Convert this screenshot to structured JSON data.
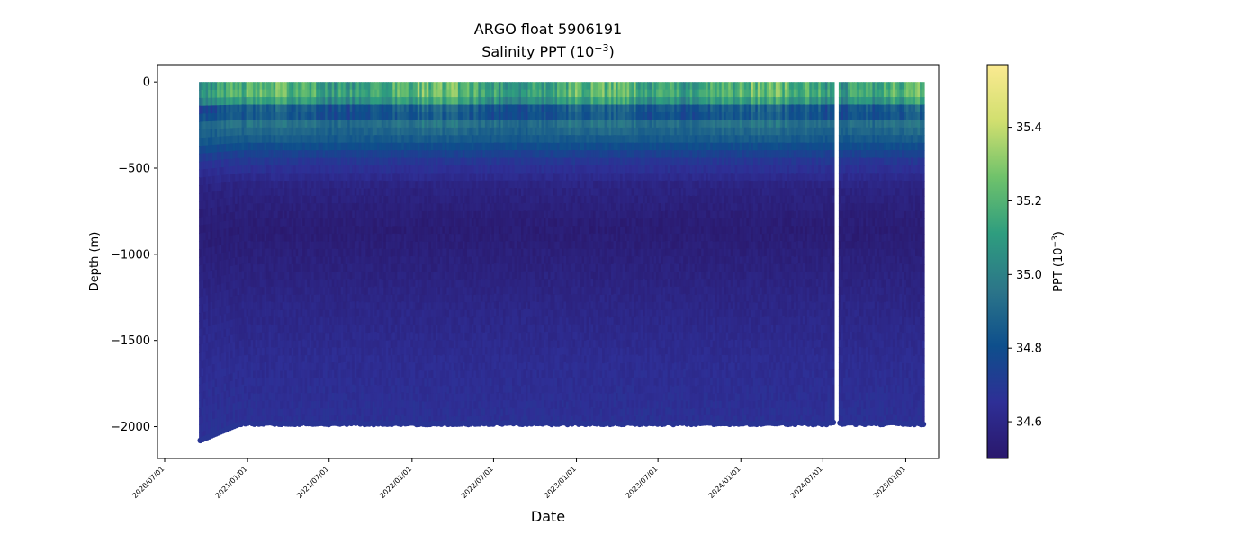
{
  "chart_data": {
    "type": "scatter",
    "title": "ARGO float 5906191",
    "subtitle_prefix": "Salinity PPT (10",
    "subtitle_sup": "−3",
    "subtitle_suffix": ")",
    "xlabel": "Date",
    "ylabel": "Depth (m)",
    "colorbar_label_prefix": "PPT (10",
    "colorbar_label_sup": "−3",
    "colorbar_label_suffix": ")",
    "colormap": "haline",
    "colormap_stops": [
      "#2a186c",
      "#2e2f96",
      "#0e4f8c",
      "#2c7689",
      "#2e9d7f",
      "#6fc26b",
      "#d1df6f",
      "#fbea91"
    ],
    "color_range": [
      34.5,
      35.57
    ],
    "x_range": [
      "2020-06-15",
      "2025-03-15"
    ],
    "y_range": [
      -2185,
      100
    ],
    "x_ticks": [
      "2020/07/01",
      "2021/01/01",
      "2021/07/01",
      "2022/01/01",
      "2022/07/01",
      "2023/01/01",
      "2023/07/01",
      "2024/01/01",
      "2024/07/01",
      "2025/01/01"
    ],
    "x_tick_dates": [
      "2020-07-01",
      "2021-01-01",
      "2021-07-01",
      "2022-01-01",
      "2022-07-01",
      "2023-01-01",
      "2023-07-01",
      "2024-01-01",
      "2024-07-01",
      "2025-01-01"
    ],
    "y_ticks": [
      0,
      -500,
      -1000,
      -1500,
      -2000
    ],
    "y_tick_labels": [
      "0",
      "−500",
      "−1000",
      "−1500",
      "−2000"
    ],
    "colorbar_ticks": [
      34.6,
      34.8,
      35.0,
      35.2,
      35.4
    ],
    "colorbar_tick_labels": [
      "34.6",
      "34.8",
      "35.0",
      "35.2",
      "35.4"
    ],
    "profile_start": "2020-09-15",
    "profile_end": "2025-02-10",
    "profile_interval_days": 5,
    "data_gap": [
      "2024-07-21",
      "2024-08-03"
    ],
    "max_depth_first_profiles": -2080,
    "max_depth_typical": -1975,
    "profile_salinity": [
      {
        "depth": 0,
        "value": 35.15
      },
      {
        "depth": -60,
        "value": 35.2
      },
      {
        "depth": -130,
        "value": 35.05
      },
      {
        "depth": -170,
        "value": 34.72
      },
      {
        "depth": -230,
        "value": 34.95
      },
      {
        "depth": -330,
        "value": 34.85
      },
      {
        "depth": -450,
        "value": 34.7
      },
      {
        "depth": -600,
        "value": 34.58
      },
      {
        "depth": -850,
        "value": 34.53
      },
      {
        "depth": -1200,
        "value": 34.58
      },
      {
        "depth": -1600,
        "value": 34.63
      },
      {
        "depth": -2000,
        "value": 34.66
      }
    ],
    "grid": false,
    "legend": "none"
  }
}
